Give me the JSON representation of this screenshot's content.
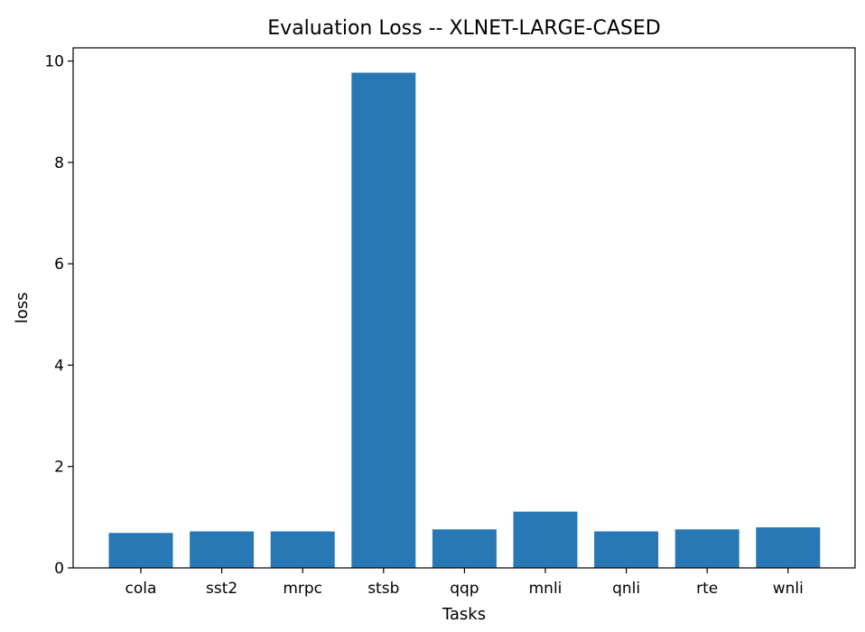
{
  "chart_data": {
    "type": "bar",
    "title": "Evaluation Loss -- XLNET-LARGE-CASED",
    "xlabel": "Tasks",
    "ylabel": "loss",
    "categories": [
      "cola",
      "sst2",
      "mrpc",
      "stsb",
      "qqp",
      "mnli",
      "qnli",
      "rte",
      "wnli"
    ],
    "values": [
      0.69,
      0.72,
      0.72,
      9.77,
      0.76,
      1.11,
      0.72,
      0.76,
      0.8
    ],
    "ylim": [
      0,
      10.26
    ],
    "yticks": [
      0,
      2,
      4,
      6,
      8,
      10
    ],
    "grid": false,
    "bar_color": "#2878b5"
  }
}
